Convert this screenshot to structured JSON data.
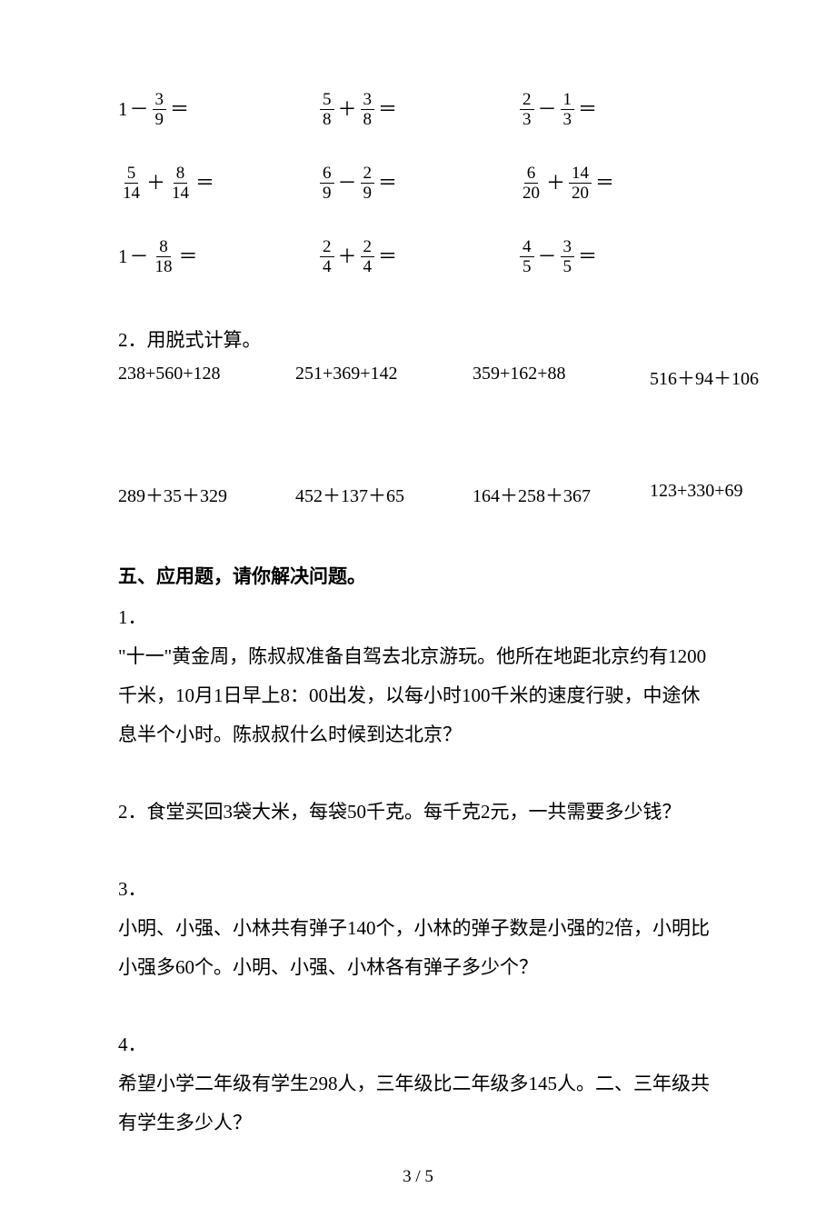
{
  "colors": {
    "text": "#000000",
    "bg": "#ffffff"
  },
  "fontsize": {
    "body": 21,
    "frac": 19,
    "footer": 19
  },
  "fraction_rows": [
    [
      {
        "terms": [
          {
            "t": "int",
            "v": "1"
          },
          {
            "t": "op",
            "v": "－"
          },
          {
            "t": "frac",
            "n": "3",
            "d": "9"
          },
          {
            "t": "eq",
            "v": "＝"
          }
        ]
      },
      {
        "terms": [
          {
            "t": "frac",
            "n": "5",
            "d": "8"
          },
          {
            "t": "op",
            "v": "＋"
          },
          {
            "t": "frac",
            "n": "3",
            "d": "8"
          },
          {
            "t": "eq",
            "v": "＝"
          }
        ]
      },
      {
        "terms": [
          {
            "t": "frac",
            "n": "2",
            "d": "3"
          },
          {
            "t": "op",
            "v": "－"
          },
          {
            "t": "frac",
            "n": "1",
            "d": "3"
          },
          {
            "t": "eq",
            "v": "＝"
          }
        ]
      }
    ],
    [
      {
        "terms": [
          {
            "t": "frac",
            "n": "5",
            "d": "14"
          },
          {
            "t": "op",
            "v": "＋"
          },
          {
            "t": "frac",
            "n": "8",
            "d": "14"
          },
          {
            "t": "eq",
            "v": "＝"
          }
        ]
      },
      {
        "terms": [
          {
            "t": "frac",
            "n": "6",
            "d": "9"
          },
          {
            "t": "op",
            "v": "－"
          },
          {
            "t": "frac",
            "n": "2",
            "d": "9"
          },
          {
            "t": "eq",
            "v": "＝"
          }
        ]
      },
      {
        "terms": [
          {
            "t": "frac",
            "n": "6",
            "d": "20"
          },
          {
            "t": "op",
            "v": "＋"
          },
          {
            "t": "frac",
            "n": "14",
            "d": "20"
          },
          {
            "t": "eq",
            "v": "＝"
          }
        ]
      }
    ],
    [
      {
        "terms": [
          {
            "t": "int",
            "v": "1"
          },
          {
            "t": "op",
            "v": "－"
          },
          {
            "t": "frac",
            "n": "8",
            "d": "18"
          },
          {
            "t": "eq",
            "v": "＝"
          }
        ]
      },
      {
        "terms": [
          {
            "t": "frac",
            "n": "2",
            "d": "4"
          },
          {
            "t": "op",
            "v": "＋"
          },
          {
            "t": "frac",
            "n": "2",
            "d": "4"
          },
          {
            "t": "eq",
            "v": "＝"
          }
        ]
      },
      {
        "terms": [
          {
            "t": "frac",
            "n": "4",
            "d": "5"
          },
          {
            "t": "op",
            "v": "－"
          },
          {
            "t": "frac",
            "n": "3",
            "d": "5"
          },
          {
            "t": "eq",
            "v": "＝"
          }
        ]
      }
    ]
  ],
  "calc": {
    "label": "2．用脱式计算。",
    "rows": [
      [
        "238+560+128",
        "251+369+142",
        "359+162+88",
        "516＋94＋106"
      ],
      [
        "289＋35＋329",
        "452＋137＋65",
        "164＋258＋367",
        "123+330+69"
      ]
    ]
  },
  "section5": {
    "heading": "五、应用题，请你解决问题。",
    "problems": [
      {
        "num": "1．",
        "text": "\"十一\"黄金周，陈叔叔准备自驾去北京游玩。他所在地距北京约有1200千米，10月1日早上8：00出发，以每小时100千米的速度行驶，中途休息半个小时。陈叔叔什么时候到达北京？"
      },
      {
        "num": "2．",
        "text": "食堂买回3袋大米，每袋50千克。每千克2元，一共需要多少钱？"
      },
      {
        "num": "3．",
        "text": "小明、小强、小林共有弹子140个，小林的弹子数是小强的2倍，小明比小强多60个。小明、小强、小林各有弹子多少个？"
      },
      {
        "num": "4．",
        "text": "希望小学二年级有学生298人，三年级比二年级多145人。二、三年级共有学生多少人？"
      }
    ]
  },
  "footer": "3 / 5"
}
